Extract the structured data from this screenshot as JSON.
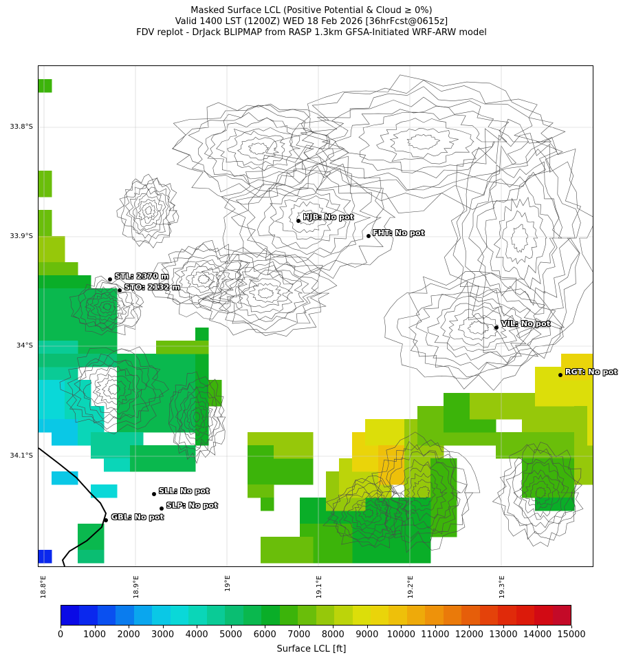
{
  "title": {
    "line1": "Masked Surface LCL (Positive Potential & Cloud ≥ 0%)",
    "line2": "Valid 1400 LST (1200Z) WED 18 Feb 2026 [36hrFcst@0615z]",
    "line3": "FDV replot - DrJack BLIPMAP from RASP 1.3km GFSA-Initiated WRF-ARW model"
  },
  "latitude_labels": [
    "33.8°S",
    "33.9°S",
    "34°S",
    "34.1°S"
  ],
  "longitude_labels": [
    "18.8°E",
    "18.9°E",
    "19°E",
    "19.1°E",
    "19.2°E",
    "19.3°E"
  ],
  "stations": [
    {
      "code": "HJB",
      "label": "HJB: No pot"
    },
    {
      "code": "FHT",
      "label": "FHT: No pot"
    },
    {
      "code": "STL",
      "label": "STL: 2370 m"
    },
    {
      "code": "STO",
      "label": "STO: 2132 m"
    },
    {
      "code": "VIL",
      "label": "VIL: No pot"
    },
    {
      "code": "RGT",
      "label": "RGT: No pot"
    },
    {
      "code": "SLL",
      "label": "SLL: No pot"
    },
    {
      "code": "SLP",
      "label": "SLP: No pot"
    },
    {
      "code": "GBL",
      "label": "GBL: No pot"
    }
  ],
  "colorbar": {
    "label": "Surface LCL [ft]",
    "ticks": [
      "0",
      "1000",
      "2000",
      "3000",
      "4000",
      "5000",
      "6000",
      "7000",
      "8000",
      "9000",
      "10000",
      "11000",
      "12000",
      "13000",
      "14000",
      "15000"
    ],
    "colors": [
      "#0a0ae6",
      "#0a28ee",
      "#0a50f0",
      "#0a7cee",
      "#0aa6ee",
      "#0ac8e6",
      "#0ad8d8",
      "#0ad6b8",
      "#0acb96",
      "#0abe72",
      "#0ab84e",
      "#0aae28",
      "#3cb40a",
      "#6abe0a",
      "#96c80a",
      "#bcd40a",
      "#dcde0a",
      "#ead40a",
      "#eec00a",
      "#eeaa0a",
      "#ee920a",
      "#ea7a0a",
      "#e65e0a",
      "#e4420a",
      "#e02a0a",
      "#dc1a0a",
      "#d20a14",
      "#c40a28"
    ]
  },
  "map_colors": {
    "coastline": "#000000",
    "contour": "#4a4a4a",
    "gridline": "#cccccc"
  }
}
